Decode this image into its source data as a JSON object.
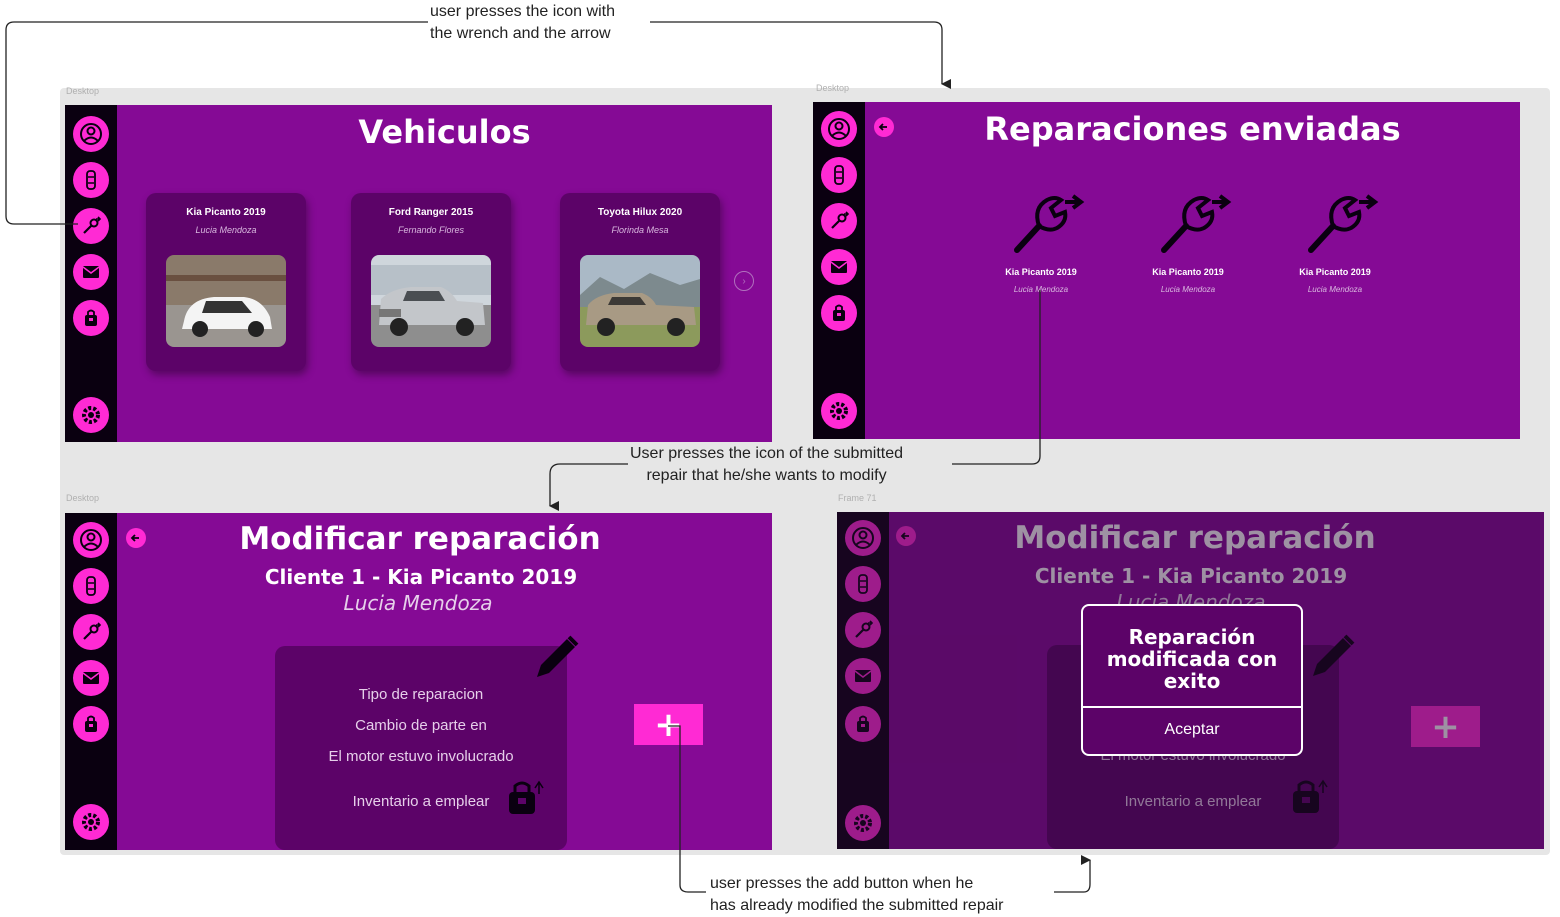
{
  "annotations": {
    "step1": [
      "user presses the icon with",
      "the wrench and the arrow"
    ],
    "step2": [
      "User presses the icon of the submitted",
      "repair that he/she wants to modify"
    ],
    "step3": [
      "user presses the add button when he",
      "has already modified the submitted repair"
    ]
  },
  "frame_labels": {
    "f1": "Desktop",
    "f2": "Desktop",
    "f3": "Desktop",
    "f4": "Frame 71"
  },
  "sidebar_icons": [
    "user-icon",
    "car-icon",
    "wrench-arrow-icon",
    "mail-icon",
    "inventory-icon",
    "gear-icon"
  ],
  "vehiculos": {
    "title": "Vehiculos",
    "cards": [
      {
        "model": "Kia Picanto 2019",
        "owner": "Lucia Mendoza",
        "image": "white-hatchback"
      },
      {
        "model": "Ford Ranger 2015",
        "owner": "Fernando Flores",
        "image": "silver-pickup"
      },
      {
        "model": "Toyota Hilux 2020",
        "owner": "Florinda Mesa",
        "image": "gold-pickup"
      }
    ]
  },
  "reparaciones": {
    "title": "Reparaciones enviadas",
    "items": [
      {
        "model": "Kia Picanto 2019",
        "owner": "Lucia Mendoza"
      },
      {
        "model": "Kia Picanto 2019",
        "owner": "Lucia Mendoza"
      },
      {
        "model": "Kia Picanto 2019",
        "owner": "Lucia Mendoza"
      }
    ]
  },
  "modificar": {
    "title": "Modificar reparación",
    "client": "Cliente 1 -  Kia Picanto 2019",
    "owner": "Lucia Mendoza",
    "repair_type_label": "Tipo de reparacion",
    "repair_line1": "Cambio de parte en",
    "repair_line2": "El motor estuvo involucrado",
    "inventory_label": "Inventario a emplear",
    "add_label": "+"
  },
  "dialog": {
    "message_lines": [
      "Reparación",
      "modificada con",
      "exito"
    ],
    "accept": "Aceptar"
  },
  "colors": {
    "screen": "#850a95",
    "sidebar": "#0a0010",
    "accent": "#ff2ad4",
    "panel": "#5c0368"
  }
}
